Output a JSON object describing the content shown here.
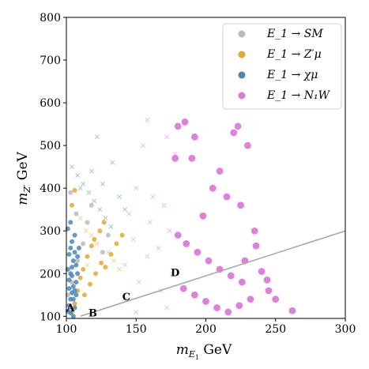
{
  "chart_data": {
    "type": "scatter",
    "xlabel": "m_{E_1} GeV",
    "ylabel": "m_{Z'} GeV",
    "xlim": [
      100,
      300
    ],
    "ylim": [
      95,
      800
    ],
    "xticks": [
      100,
      150,
      200,
      250,
      300
    ],
    "yticks": [
      100,
      200,
      300,
      400,
      500,
      600,
      700,
      800
    ],
    "grid": false,
    "legend_position": "top-right",
    "series": [
      {
        "name": "E_1 → SM",
        "color": "#bbbbbb",
        "marker": "circle",
        "points": [
          [
            101,
            150
          ],
          [
            104,
            180
          ],
          [
            108,
            230
          ],
          [
            112,
            270
          ],
          [
            115,
            320
          ],
          [
            118,
            360
          ],
          [
            103,
            390
          ],
          [
            107,
            340
          ],
          [
            126,
            250
          ],
          [
            130,
            290
          ]
        ]
      },
      {
        "name": "E_1 → Z'μ",
        "color": "#e3a82b",
        "marker": "circle",
        "points": [
          [
            104,
            110
          ],
          [
            106,
            130
          ],
          [
            108,
            160
          ],
          [
            110,
            190
          ],
          [
            112,
            210
          ],
          [
            115,
            240
          ],
          [
            118,
            265
          ],
          [
            120,
            280
          ],
          [
            124,
            300
          ],
          [
            127,
            320
          ],
          [
            104,
            360
          ],
          [
            106,
            395
          ],
          [
            128,
            215
          ],
          [
            132,
            245
          ],
          [
            136,
            270
          ],
          [
            140,
            290
          ],
          [
            113,
            150
          ],
          [
            117,
            175
          ],
          [
            121,
            200
          ],
          [
            125,
            225
          ]
        ]
      },
      {
        "name": "E_1 → χμ",
        "color": "#4a86b8",
        "marker": "circle",
        "points": [
          [
            101,
            112
          ],
          [
            102,
            125
          ],
          [
            103,
            140
          ],
          [
            104,
            155
          ],
          [
            105,
            170
          ],
          [
            102,
            185
          ],
          [
            103,
            200
          ],
          [
            104,
            215
          ],
          [
            105,
            230
          ],
          [
            102,
            245
          ],
          [
            103,
            260
          ],
          [
            104,
            275
          ],
          [
            106,
            290
          ],
          [
            101,
            305
          ],
          [
            103,
            320
          ],
          [
            105,
            140
          ],
          [
            106,
            160
          ],
          [
            107,
            180
          ],
          [
            108,
            200
          ],
          [
            106,
            120
          ],
          [
            107,
            220
          ],
          [
            108,
            240
          ],
          [
            109,
            260
          ],
          [
            105,
            100
          ],
          [
            103,
            108
          ],
          [
            102,
            165
          ],
          [
            104,
            195
          ],
          [
            101,
            210
          ],
          [
            107,
            150
          ],
          [
            106,
            250
          ]
        ]
      },
      {
        "name": "E_1 → N_1 W",
        "color": "#dc79dc",
        "marker": "circle",
        "points": [
          [
            180,
            545
          ],
          [
            185,
            555
          ],
          [
            192,
            520
          ],
          [
            220,
            530
          ],
          [
            223,
            545
          ],
          [
            210,
            440
          ],
          [
            190,
            470
          ],
          [
            178,
            470
          ],
          [
            230,
            500
          ],
          [
            205,
            400
          ],
          [
            215,
            380
          ],
          [
            225,
            360
          ],
          [
            198,
            335
          ],
          [
            235,
            300
          ],
          [
            180,
            290
          ],
          [
            186,
            270
          ],
          [
            194,
            250
          ],
          [
            202,
            230
          ],
          [
            210,
            210
          ],
          [
            218,
            195
          ],
          [
            226,
            180
          ],
          [
            184,
            165
          ],
          [
            192,
            150
          ],
          [
            200,
            135
          ],
          [
            208,
            120
          ],
          [
            216,
            110
          ],
          [
            224,
            125
          ],
          [
            232,
            140
          ],
          [
            240,
            205
          ],
          [
            245,
            160
          ],
          [
            250,
            140
          ],
          [
            262,
            113
          ],
          [
            228,
            230
          ],
          [
            236,
            265
          ],
          [
            244,
            185
          ]
        ]
      }
    ],
    "background_points": [
      {
        "color": "#4a86b8",
        "marker": "cross",
        "points": [
          [
            104,
            450
          ],
          [
            108,
            430
          ],
          [
            112,
            410
          ],
          [
            116,
            390
          ],
          [
            120,
            370
          ],
          [
            124,
            350
          ],
          [
            128,
            330
          ],
          [
            132,
            310
          ],
          [
            122,
            520
          ],
          [
            133,
            460
          ],
          [
            118,
            440
          ],
          [
            110,
            400
          ],
          [
            126,
            410
          ],
          [
            138,
            380
          ],
          [
            142,
            350
          ]
        ]
      },
      {
        "color": "#dc79dc",
        "marker": "cross",
        "points": [
          [
            158,
            560
          ],
          [
            155,
            500
          ],
          [
            172,
            520
          ],
          [
            178,
            480
          ],
          [
            150,
            400
          ],
          [
            162,
            380
          ],
          [
            170,
            360
          ],
          [
            145,
            340
          ],
          [
            160,
            320
          ],
          [
            174,
            300
          ],
          [
            148,
            280
          ],
          [
            166,
            260
          ],
          [
            158,
            240
          ],
          [
            142,
            220
          ],
          [
            176,
            200
          ],
          [
            152,
            180
          ],
          [
            168,
            160
          ],
          [
            144,
            140
          ],
          [
            172,
            120
          ],
          [
            150,
            110
          ]
        ]
      },
      {
        "color": "#e3a82b",
        "marker": "cross",
        "points": [
          [
            110,
            330
          ],
          [
            114,
            300
          ],
          [
            118,
            290
          ],
          [
            122,
            270
          ],
          [
            130,
            250
          ],
          [
            134,
            230
          ],
          [
            138,
            210
          ],
          [
            115,
            220
          ]
        ]
      }
    ],
    "cut_line": {
      "points": [
        [
          110,
          100
        ],
        [
          300,
          300
        ]
      ],
      "color": "#a9a9a9"
    },
    "annotations": [
      {
        "text": "A",
        "x": 103,
        "y": 112
      },
      {
        "text": "B",
        "x": 119,
        "y": 100
      },
      {
        "text": "C",
        "x": 143,
        "y": 138
      },
      {
        "text": "D",
        "x": 178,
        "y": 194
      }
    ],
    "legend": [
      {
        "math": "E_1",
        "arrow": "→",
        "rest": "SM",
        "color": "#bbbbbb"
      },
      {
        "math": "E_1",
        "arrow": "→",
        "rest": "Z′μ",
        "color": "#e3a82b"
      },
      {
        "math": "E_1",
        "arrow": "→",
        "rest": "χμ",
        "color": "#4a86b8"
      },
      {
        "math": "E_1",
        "arrow": "→",
        "rest": "N₁W",
        "color": "#dc79dc"
      }
    ]
  }
}
